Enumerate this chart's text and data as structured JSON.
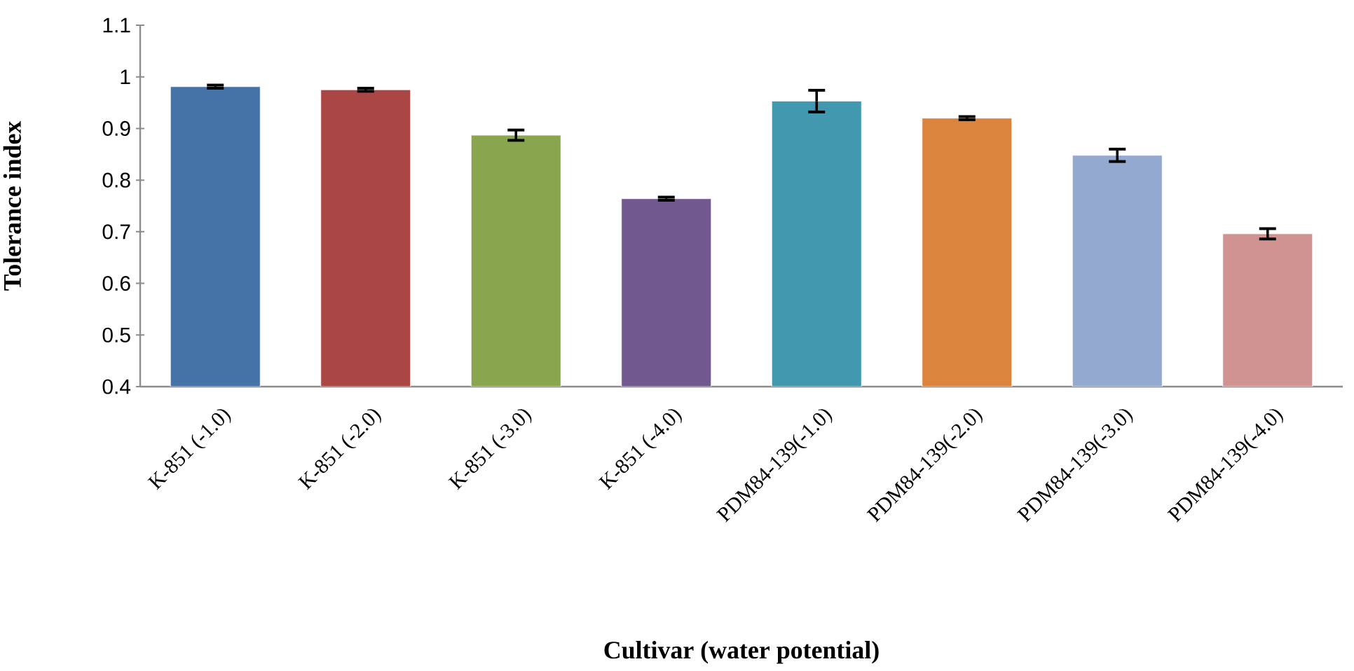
{
  "chart_data": {
    "type": "bar",
    "xlabel": "Cultivar (water potential)",
    "ylabel": "Tolerance index",
    "categories": [
      "K-851 (-1.0)",
      "K-851 (-2.0)",
      "K-851 (-3.0)",
      "K-851 (-4.0)",
      "PDM84-139(-1.0)",
      "PDM84-139(-2.0)",
      "PDM84-139(-3.0)",
      "PDM84-139(-4.0)"
    ],
    "values": [
      0.981,
      0.975,
      0.887,
      0.764,
      0.953,
      0.92,
      0.848,
      0.696
    ],
    "errors": [
      0.003,
      0.003,
      0.01,
      0.003,
      0.021,
      0.003,
      0.012,
      0.01
    ],
    "colors": [
      "#4572a7",
      "#aa4643",
      "#89a54e",
      "#71588f",
      "#4198af",
      "#db843d",
      "#93a9cf",
      "#d19392"
    ],
    "ylim": [
      0.4,
      1.1
    ],
    "yticks": [
      0.4,
      0.5,
      0.6,
      0.7,
      0.8,
      0.9,
      1,
      1.1
    ],
    "grid": false
  }
}
